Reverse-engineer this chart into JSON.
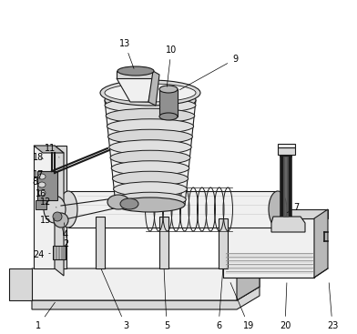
{
  "bg_color": "#ffffff",
  "lc": "#1a1a1a",
  "fc_light": "#f0f0f0",
  "fc_mid": "#d8d8d8",
  "fc_dark": "#b8b8b8",
  "fc_darker": "#909090",
  "figsize": [
    3.92,
    3.67
  ],
  "dpi": 100
}
